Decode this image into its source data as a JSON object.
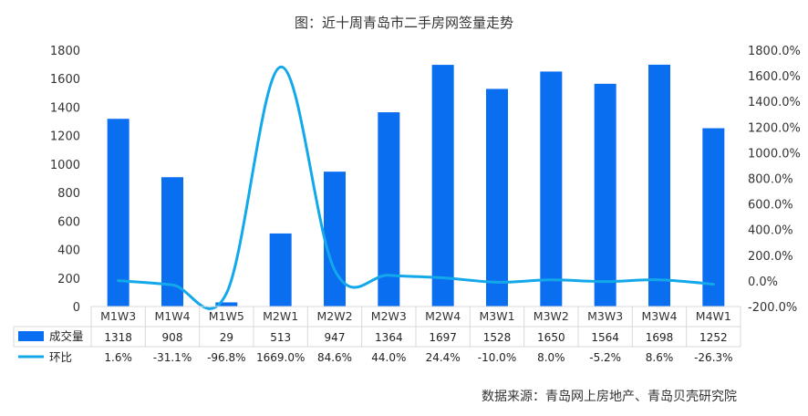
{
  "title": "图：近十周青岛市二手房网签量走势",
  "source": "数据来源：青岛网上房地产、青岛贝壳研究院",
  "colors": {
    "bar": "#0A6EF0",
    "line": "#12A8EA",
    "grid": "#D9D9D9",
    "text": "#333333"
  },
  "chart_data": {
    "type": "bar",
    "categories": [
      "M1W3",
      "M1W4",
      "M1W5",
      "M2W1",
      "M2W2",
      "M2W3",
      "M2W4",
      "M3W1",
      "M3W2",
      "M3W3",
      "M3W4",
      "M4W1"
    ],
    "series": [
      {
        "name": "成交量",
        "type": "bar",
        "axis": "left",
        "values": [
          1318,
          908,
          29,
          513,
          947,
          1364,
          1697,
          1528,
          1650,
          1564,
          1698,
          1252
        ]
      },
      {
        "name": "环比",
        "type": "line",
        "axis": "right",
        "values": [
          1.6,
          -31.1,
          -96.8,
          1669.0,
          84.6,
          44.0,
          24.4,
          -10.0,
          8.0,
          -5.2,
          8.6,
          -26.3
        ],
        "labels": [
          "1.6%",
          "-31.1%",
          "-96.8%",
          "1669.0%",
          "84.6%",
          "44.0%",
          "24.4%",
          "-10.0%",
          "8.0%",
          "-5.2%",
          "8.6%",
          "-26.3%"
        ]
      }
    ],
    "y_left": {
      "min": 0,
      "max": 1800,
      "ticks": [
        "0",
        "200",
        "400",
        "600",
        "800",
        "1000",
        "1200",
        "1400",
        "1600",
        "1800"
      ]
    },
    "y_right": {
      "min": -200,
      "max": 1800,
      "ticks": [
        "-200.0%",
        "0.0%",
        "200.0%",
        "400.0%",
        "600.0%",
        "800.0%",
        "1000.0%",
        "1200.0%",
        "1400.0%",
        "1600.0%",
        "1800.0%"
      ]
    },
    "legend": "data-table-bottom"
  }
}
